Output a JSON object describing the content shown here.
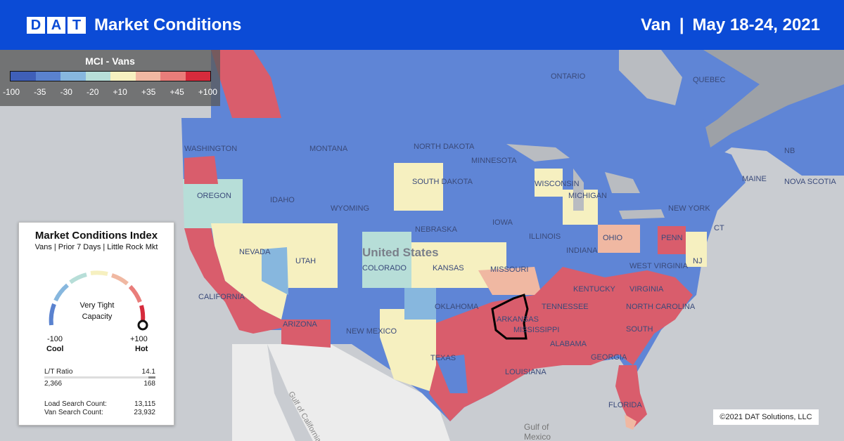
{
  "header": {
    "logo_letters": [
      "D",
      "A",
      "T"
    ],
    "title": "Market Conditions",
    "equipment": "Van",
    "separator": "|",
    "date_range": "May 18-24, 2021"
  },
  "legend": {
    "title": "MCI - Vans",
    "labels": [
      "-100",
      "-35",
      "-30",
      "-20",
      "+10",
      "+35",
      "+45",
      "+100"
    ],
    "colors": [
      "#3f5fb8",
      "#5a82cf",
      "#87b7de",
      "#b7ded8",
      "#f6f0c0",
      "#f0b8a2",
      "#e97d7a",
      "#d62b3c"
    ]
  },
  "map_labels": {
    "ontario": "ONTARIO",
    "quebec": "QUEBEC",
    "washington": "WASHINGTON",
    "montana": "MONTANA",
    "north_dakota": "NORTH DAKOTA",
    "minnesota": "MINNESOTA",
    "south_dakota": "SOUTH DAKOTA",
    "oregon": "OREGON",
    "idaho": "IDAHO",
    "wyoming": "WYOMING",
    "wisconsin": "WISCONSIN",
    "michigan": "MICHIGAN",
    "new_york": "NEW YORK",
    "maine": "MAINE",
    "nova_scotia": "NOVA SCOTIA",
    "nb": "NB",
    "nevada": "NEVADA",
    "utah": "UTAH",
    "colorado": "COLORADO",
    "nebraska": "NEBRASKA",
    "kansas": "KANSAS",
    "iowa": "IOWA",
    "illinois": "ILLINOIS",
    "indiana": "INDIANA",
    "ohio": "OHIO",
    "penn": "PENN",
    "nj": "NJ",
    "ct": "CT",
    "united_states": "United States",
    "california": "CALIFORNIA",
    "arizona": "ARIZONA",
    "new_mexico": "NEW MEXICO",
    "oklahoma": "OKLAHOMA",
    "texas": "TEXAS",
    "missouri": "MISSOURI",
    "kentucky": "KENTUCKY",
    "west_virginia": "WEST VIRGINIA",
    "virginia": "VIRGINIA",
    "tennessee": "TENNESSEE",
    "north_carolina": "NORTH CAROLINA",
    "south": "SOUTH",
    "arkansas": "ARKANSAS",
    "mississippi": "MISSISSIPPI",
    "alabama": "ALABAMA",
    "georgia": "GEORGIA",
    "louisiana": "LOUISIANA",
    "florida": "FLORIDA",
    "gulf_of_california": "Gulf of California",
    "gulf_of_mexico_1": "Gulf of",
    "gulf_of_mexico_2": "Mexico"
  },
  "panel": {
    "title": "Market Conditions Index",
    "subtitle": "Vans | Prior 7 Days | Little Rock Mkt",
    "gauge_status_1": "Very Tight",
    "gauge_status_2": "Capacity",
    "gauge_value": 100,
    "min_label": "-100",
    "max_label": "+100",
    "cool_label": "Cool",
    "hot_label": "Hot",
    "lt_ratio_label": "L/T Ratio",
    "lt_ratio_value": "14.1",
    "ratio_left": "2,366",
    "ratio_right": "168",
    "load_search_label": "Load Search Count:",
    "load_search_value": "13,115",
    "van_search_label": "Van Search Count:",
    "van_search_value": "23,932"
  },
  "copyright": "©2021 DAT Solutions, LLC"
}
